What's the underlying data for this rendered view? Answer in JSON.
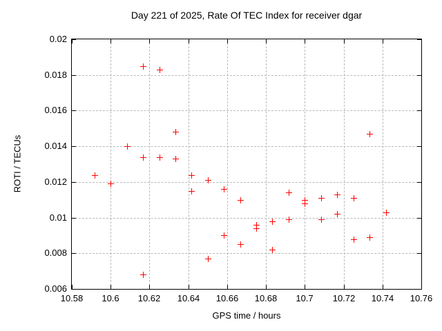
{
  "chart_data": {
    "type": "scatter",
    "title": "Day 221 of 2025, Rate Of TEC Index for receiver dgar",
    "xlabel": "GPS time / hours",
    "ylabel": "ROTI / TECUs",
    "xlim": [
      10.58,
      10.76
    ],
    "ylim": [
      0.006,
      0.02
    ],
    "grid": true,
    "legend_position": "none",
    "marker": "plus",
    "marker_color": "#ff0000",
    "grid_color": "#b8b8b8",
    "xticks": [
      {
        "v": 10.58,
        "label": "10.58"
      },
      {
        "v": 10.6,
        "label": "10.6"
      },
      {
        "v": 10.62,
        "label": "10.62"
      },
      {
        "v": 10.64,
        "label": "10.64"
      },
      {
        "v": 10.66,
        "label": "10.66"
      },
      {
        "v": 10.68,
        "label": "10.68"
      },
      {
        "v": 10.7,
        "label": "10.7"
      },
      {
        "v": 10.72,
        "label": "10.72"
      },
      {
        "v": 10.74,
        "label": "10.74"
      },
      {
        "v": 10.76,
        "label": "10.76"
      }
    ],
    "yticks": [
      {
        "v": 0.006,
        "label": "0.006"
      },
      {
        "v": 0.008,
        "label": "0.008"
      },
      {
        "v": 0.01,
        "label": "0.01"
      },
      {
        "v": 0.012,
        "label": "0.012"
      },
      {
        "v": 0.014,
        "label": "0.014"
      },
      {
        "v": 0.016,
        "label": "0.016"
      },
      {
        "v": 0.018,
        "label": "0.018"
      },
      {
        "v": 0.02,
        "label": "0.02"
      }
    ],
    "points": [
      [
        10.5917,
        0.0124
      ],
      [
        10.6,
        0.0119
      ],
      [
        10.6083,
        0.014
      ],
      [
        10.6167,
        0.0185
      ],
      [
        10.6167,
        0.0134
      ],
      [
        10.6167,
        0.0068
      ],
      [
        10.625,
        0.0183
      ],
      [
        10.625,
        0.0134
      ],
      [
        10.6333,
        0.0148
      ],
      [
        10.6333,
        0.0133
      ],
      [
        10.6417,
        0.0124
      ],
      [
        10.6417,
        0.0115
      ],
      [
        10.65,
        0.0121
      ],
      [
        10.65,
        0.0077
      ],
      [
        10.6583,
        0.0116
      ],
      [
        10.6583,
        0.009
      ],
      [
        10.6667,
        0.011
      ],
      [
        10.6667,
        0.0085
      ],
      [
        10.675,
        0.0096
      ],
      [
        10.675,
        0.0094
      ],
      [
        10.6833,
        0.0098
      ],
      [
        10.6833,
        0.0082
      ],
      [
        10.6917,
        0.0114
      ],
      [
        10.6917,
        0.0099
      ],
      [
        10.7,
        0.011
      ],
      [
        10.7,
        0.0108
      ],
      [
        10.7083,
        0.0111
      ],
      [
        10.7083,
        0.0099
      ],
      [
        10.7167,
        0.0113
      ],
      [
        10.7167,
        0.0102
      ],
      [
        10.725,
        0.0111
      ],
      [
        10.725,
        0.0088
      ],
      [
        10.7333,
        0.0147
      ],
      [
        10.7333,
        0.0089
      ],
      [
        10.7417,
        0.0103
      ]
    ]
  }
}
